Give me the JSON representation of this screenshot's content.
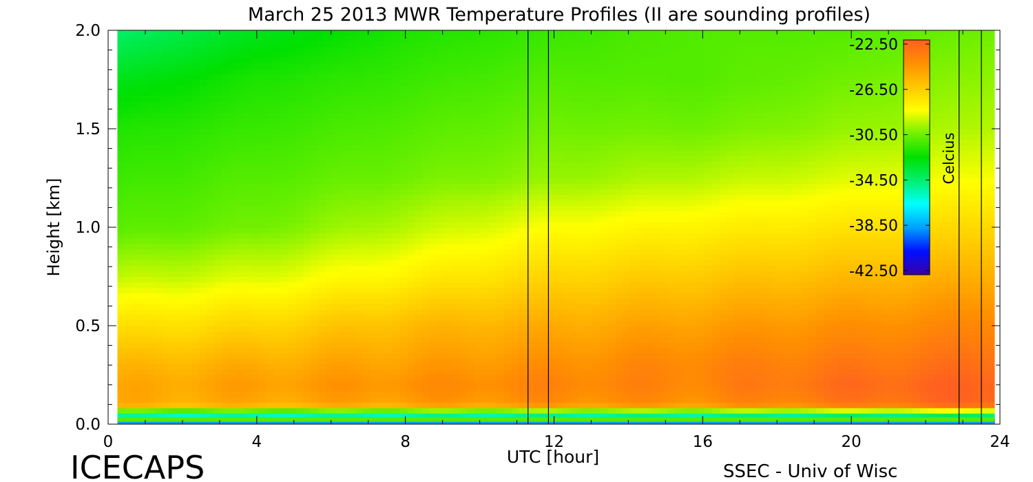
{
  "chart_data": {
    "type": "heatmap",
    "title": "March 25 2013 MWR Temperature Profiles (II are sounding profiles)",
    "xlabel": "UTC [hour]",
    "ylabel": "Height [km]",
    "xlim": [
      0,
      24
    ],
    "ylim": [
      0,
      2
    ],
    "x_ticks": [
      "0",
      "4",
      "8",
      "12",
      "16",
      "20",
      "24"
    ],
    "y_ticks": [
      "0.0",
      "0.5",
      "1.0",
      "1.5",
      "2.0"
    ],
    "colorbar": {
      "label": "Celcius",
      "range": [
        -42.5,
        -22.5
      ],
      "ticks": [
        "-22.50",
        "-26.50",
        "-30.50",
        "-34.50",
        "-38.50",
        "-42.50"
      ],
      "colors": [
        "#3a00a8",
        "#0010ff",
        "#00a0ff",
        "#00ffff",
        "#00f070",
        "#00e000",
        "#70f000",
        "#ffff00",
        "#ffc800",
        "#ff9000",
        "#ff6020"
      ]
    },
    "sounding_times_utc": [
      11.3,
      11.85,
      22.9,
      23.5
    ],
    "data_coverage_x": [
      0.25,
      23.85
    ],
    "temperature_profile_description": {
      "heights_km": [
        0.0,
        0.1,
        0.2,
        0.3,
        0.5,
        0.75,
        1.0,
        1.25,
        1.5,
        1.75,
        2.0
      ],
      "times_utc": [
        0,
        4,
        8,
        12,
        16,
        20,
        24
      ],
      "celsius": [
        [
          -42.5,
          -25.5,
          -25.5,
          -26.0,
          -27.5,
          -29.5,
          -31.0,
          -31.5,
          -32.0,
          -33.0,
          -34.5
        ],
        [
          -42.5,
          -25.5,
          -25.0,
          -25.5,
          -27.0,
          -29.0,
          -30.5,
          -31.0,
          -31.5,
          -32.0,
          -33.0
        ],
        [
          -42.5,
          -25.0,
          -24.5,
          -25.0,
          -26.0,
          -28.0,
          -29.5,
          -30.5,
          -31.0,
          -31.5,
          -32.0
        ],
        [
          -42.5,
          -24.5,
          -24.0,
          -24.5,
          -25.5,
          -27.0,
          -28.5,
          -30.0,
          -30.5,
          -31.0,
          -31.5
        ],
        [
          -42.5,
          -24.5,
          -24.0,
          -24.0,
          -25.0,
          -26.5,
          -28.0,
          -29.5,
          -30.5,
          -31.0,
          -31.0
        ],
        [
          -42.5,
          -23.5,
          -23.0,
          -23.5,
          -24.5,
          -26.0,
          -27.5,
          -29.0,
          -30.0,
          -30.5,
          -31.0
        ],
        [
          -42.5,
          -22.5,
          -22.5,
          -23.0,
          -24.0,
          -25.5,
          -27.0,
          -28.5,
          -29.5,
          -30.0,
          -30.5
        ]
      ]
    }
  },
  "footer": {
    "left": "ICECAPS",
    "right": "SSEC - Univ of Wisc"
  },
  "colors": {
    "axis": "#000000",
    "background": "#ffffff"
  }
}
